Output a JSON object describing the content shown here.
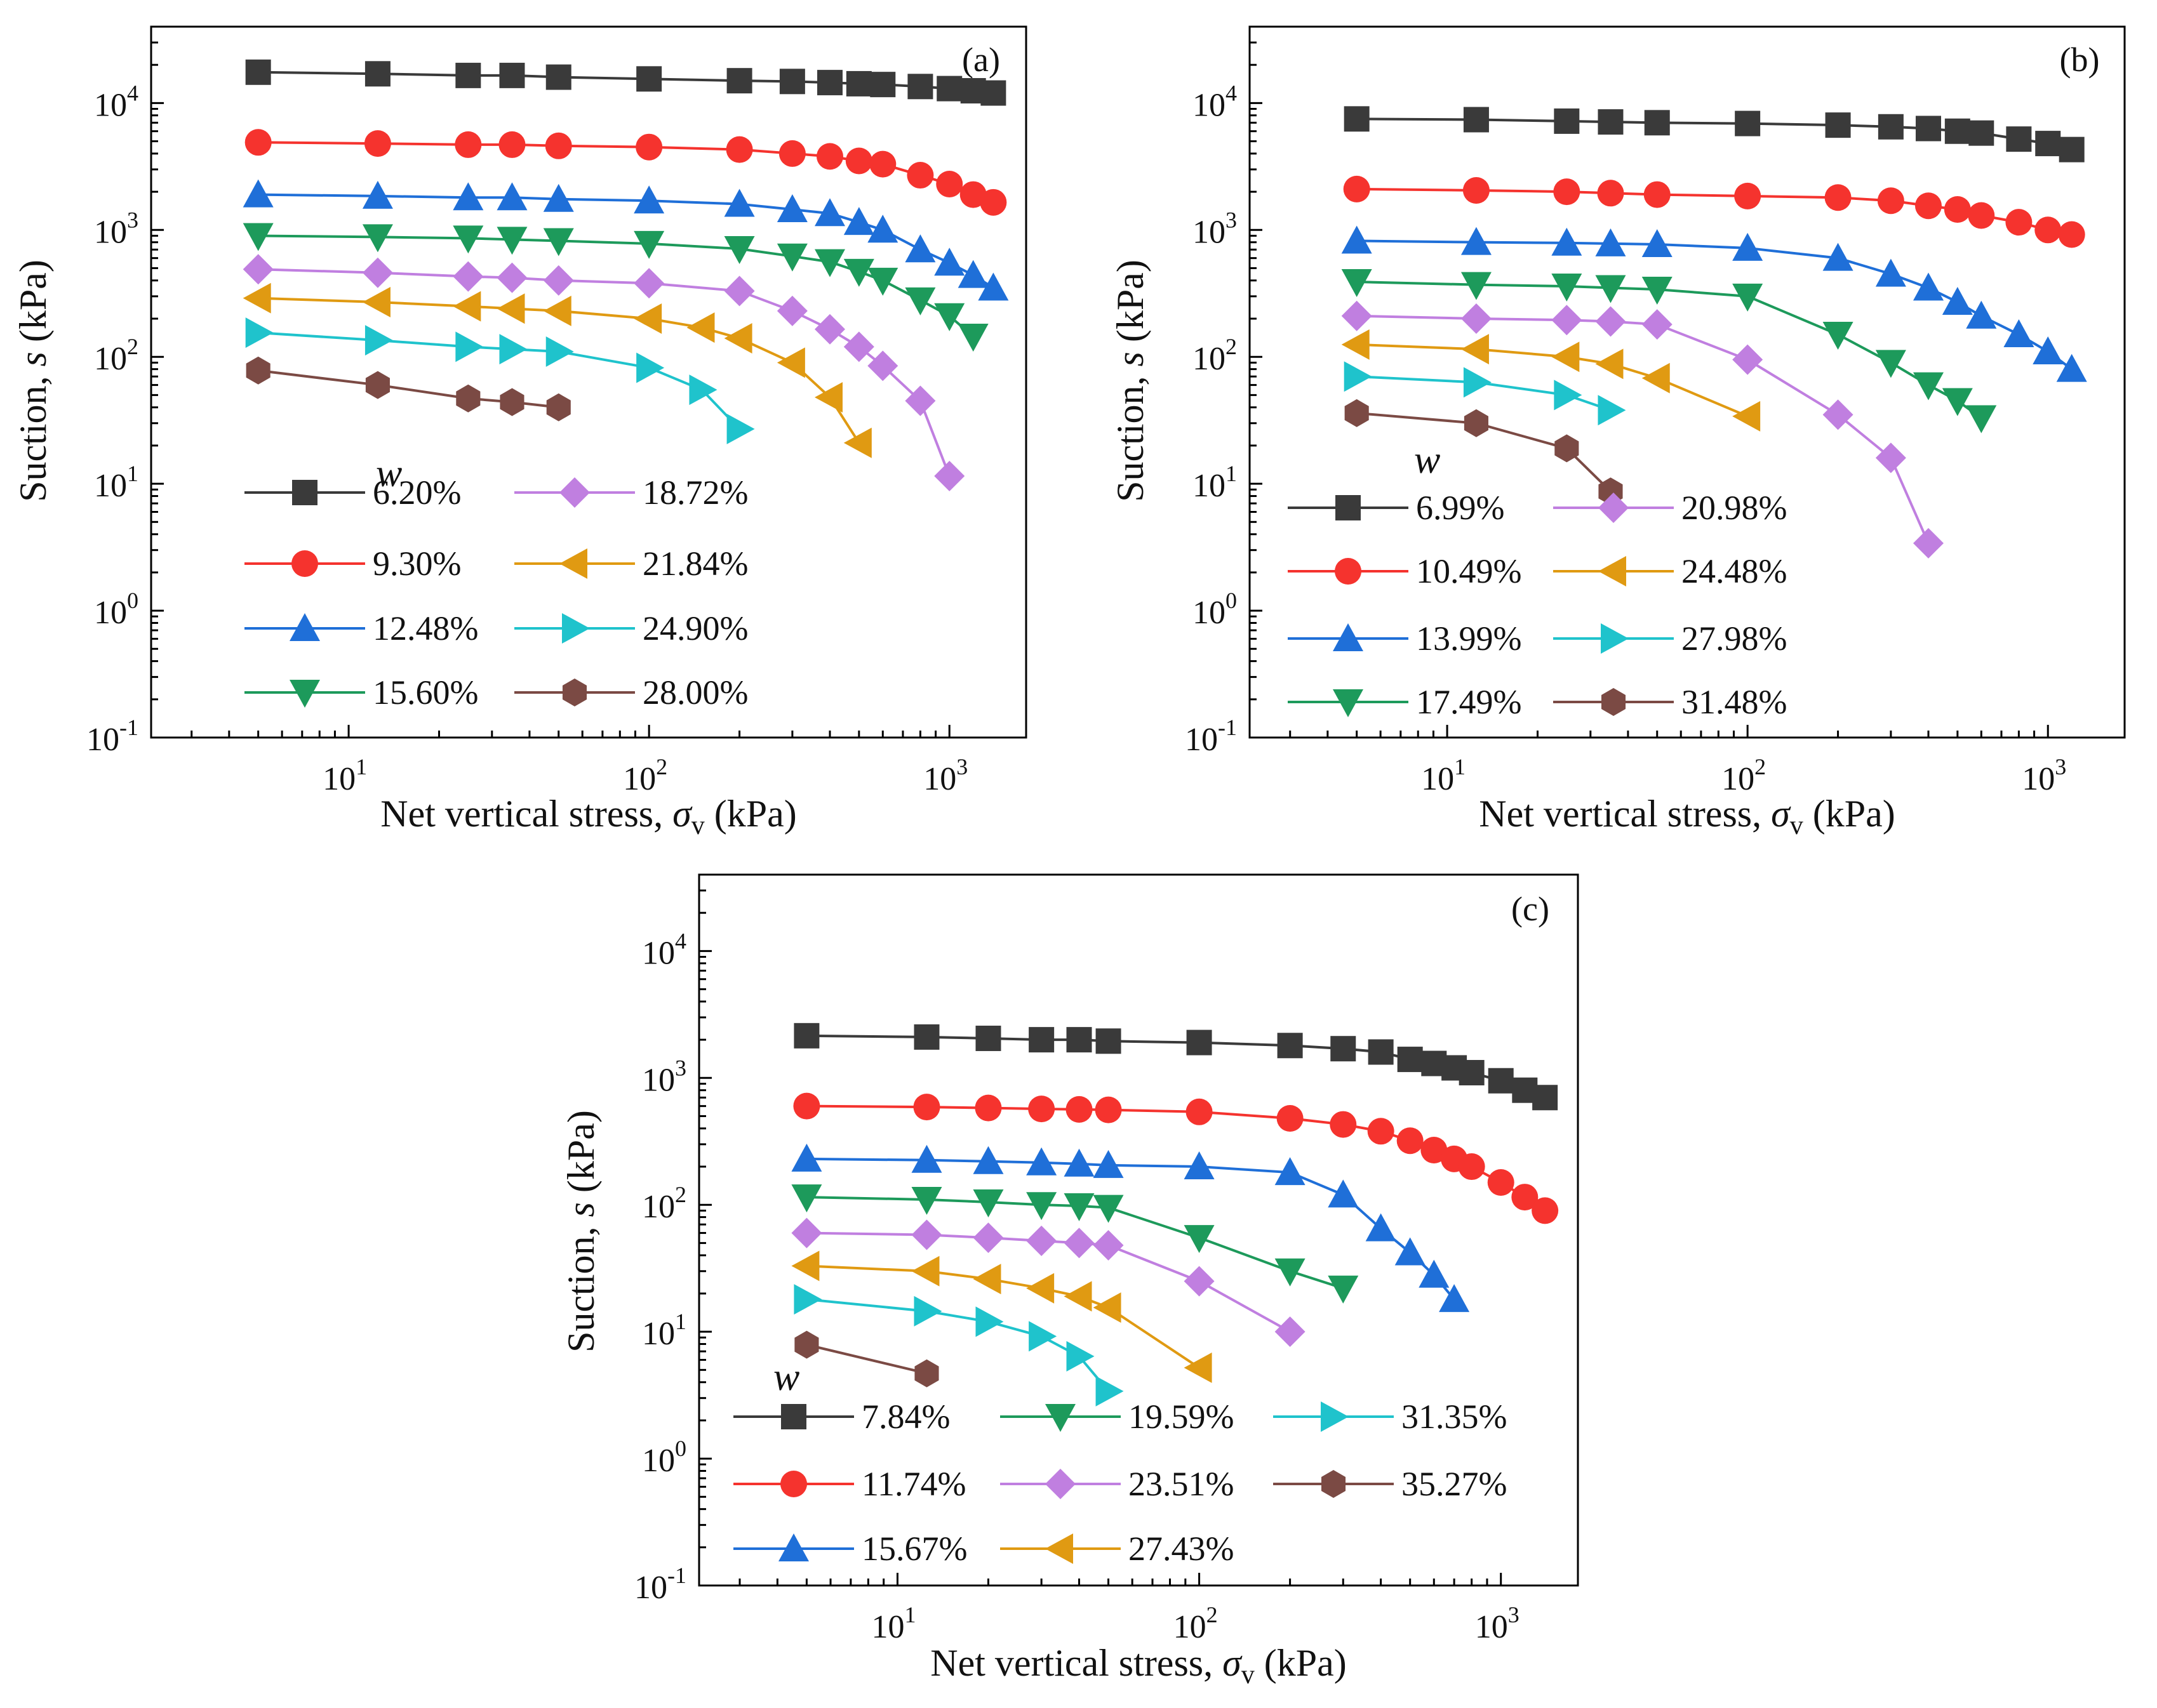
{
  "figure": {
    "x_axis_title": "Net vertical stress,",
    "x_axis_symbol": "σ",
    "x_axis_subscript": "v",
    "x_axis_unit": "(kPa)",
    "y_axis_title": "Suction,",
    "y_axis_symbol": "s",
    "y_axis_unit": "(kPa)",
    "legend_title": "w",
    "y_tick_labels": [
      "10",
      "10",
      "10",
      "10",
      "10",
      "10"
    ],
    "y_tick_exponents": [
      "-1",
      "0",
      "1",
      "2",
      "3",
      "4"
    ],
    "x_tick_labels": [
      "10",
      "10",
      "10"
    ],
    "x_tick_exponents": [
      "1",
      "2",
      "3"
    ]
  },
  "chart_data": [
    {
      "type": "line",
      "panel": "(a)",
      "xscale": "log",
      "yscale": "log",
      "xlim": [
        2.2,
        1800
      ],
      "ylim": [
        0.1,
        40000
      ],
      "xlabel": "Net vertical stress, σv (kPa)",
      "ylabel": "Suction, s (kPa)",
      "legend_title": "w",
      "series": [
        {
          "name": "6.20%",
          "color": "#3a3a3a",
          "marker": "square",
          "x": [
            5,
            12.5,
            25,
            35,
            50,
            100,
            200,
            300,
            400,
            500,
            600,
            800,
            1000,
            1200,
            1400
          ],
          "y": [
            17500,
            17000,
            16500,
            16500,
            16000,
            15500,
            15000,
            14800,
            14500,
            14200,
            14000,
            13500,
            13000,
            12500,
            12000
          ]
        },
        {
          "name": "9.30%",
          "color": "#f5332e",
          "marker": "circle",
          "x": [
            5,
            12.5,
            25,
            35,
            50,
            100,
            200,
            300,
            400,
            500,
            600,
            800,
            1000,
            1200,
            1400
          ],
          "y": [
            4900,
            4800,
            4700,
            4700,
            4600,
            4500,
            4300,
            4000,
            3800,
            3500,
            3300,
            2700,
            2300,
            1900,
            1650
          ]
        },
        {
          "name": "12.48%",
          "color": "#1f6fd8",
          "marker": "triangle-up",
          "x": [
            5,
            12.5,
            25,
            35,
            50,
            100,
            200,
            300,
            400,
            500,
            600,
            800,
            1000,
            1200,
            1400
          ],
          "y": [
            1900,
            1850,
            1800,
            1800,
            1750,
            1700,
            1600,
            1450,
            1350,
            1150,
            1000,
            700,
            550,
            440,
            350
          ]
        },
        {
          "name": "15.60%",
          "color": "#1d9a5b",
          "marker": "triangle-down",
          "x": [
            5,
            12.5,
            25,
            35,
            50,
            100,
            200,
            300,
            400,
            500,
            600,
            800,
            1000,
            1200
          ],
          "y": [
            900,
            880,
            860,
            840,
            820,
            780,
            710,
            620,
            560,
            470,
            400,
            280,
            210,
            145
          ]
        },
        {
          "name": "18.72%",
          "color": "#c07fe0",
          "marker": "diamond",
          "x": [
            5,
            12.5,
            25,
            35,
            50,
            100,
            200,
            300,
            400,
            500,
            600,
            800,
            1000
          ],
          "y": [
            490,
            460,
            430,
            420,
            400,
            380,
            330,
            230,
            165,
            120,
            85,
            45,
            11.5
          ]
        },
        {
          "name": "21.84%",
          "color": "#e09a12",
          "marker": "triangle-left",
          "x": [
            5,
            12.5,
            25,
            35,
            50,
            100,
            150,
            200,
            300,
            400,
            500
          ],
          "y": [
            290,
            270,
            250,
            240,
            230,
            200,
            170,
            140,
            90,
            48,
            21
          ]
        },
        {
          "name": "24.90%",
          "color": "#1fc3cc",
          "marker": "triangle-right",
          "x": [
            5,
            12.5,
            25,
            35,
            50,
            100,
            150,
            200
          ],
          "y": [
            155,
            135,
            120,
            115,
            110,
            82,
            55,
            27
          ]
        },
        {
          "name": "28.00%",
          "color": "#7b4a44",
          "marker": "hexagon",
          "x": [
            5,
            12.5,
            25,
            35,
            50
          ],
          "y": [
            78,
            60,
            47,
            44,
            40
          ]
        }
      ]
    },
    {
      "type": "line",
      "panel": "(b)",
      "xscale": "log",
      "yscale": "log",
      "xlim": [
        2.2,
        1800
      ],
      "ylim": [
        0.1,
        40000
      ],
      "xlabel": "Net vertical stress, σv (kPa)",
      "ylabel": "Suction, s (kPa)",
      "legend_title": "w",
      "series": [
        {
          "name": "6.99%",
          "color": "#3a3a3a",
          "marker": "square",
          "x": [
            5,
            12.5,
            25,
            35,
            50,
            100,
            200,
            300,
            400,
            500,
            600,
            800,
            1000,
            1200
          ],
          "y": [
            7500,
            7400,
            7200,
            7100,
            7000,
            6900,
            6700,
            6500,
            6300,
            6000,
            5800,
            5200,
            4800,
            4300
          ]
        },
        {
          "name": "10.49%",
          "color": "#f5332e",
          "marker": "circle",
          "x": [
            5,
            12.5,
            25,
            35,
            50,
            100,
            200,
            300,
            400,
            500,
            600,
            800,
            1000,
            1200
          ],
          "y": [
            2100,
            2050,
            2000,
            1950,
            1900,
            1850,
            1800,
            1700,
            1550,
            1450,
            1300,
            1150,
            1000,
            920
          ]
        },
        {
          "name": "13.99%",
          "color": "#1f6fd8",
          "marker": "triangle-up",
          "x": [
            5,
            12.5,
            25,
            35,
            50,
            100,
            200,
            300,
            400,
            500,
            600,
            800,
            1000,
            1200
          ],
          "y": [
            820,
            800,
            790,
            780,
            770,
            720,
            600,
            450,
            350,
            270,
            210,
            150,
            110,
            80
          ]
        },
        {
          "name": "17.49%",
          "color": "#1d9a5b",
          "marker": "triangle-down",
          "x": [
            5,
            12.5,
            25,
            35,
            50,
            100,
            200,
            300,
            400,
            500,
            600
          ],
          "y": [
            390,
            370,
            360,
            350,
            340,
            300,
            150,
            90,
            60,
            45,
            33
          ]
        },
        {
          "name": "20.98%",
          "color": "#c07fe0",
          "marker": "diamond",
          "x": [
            5,
            12.5,
            25,
            35,
            50,
            100,
            200,
            300,
            400
          ],
          "y": [
            210,
            200,
            195,
            190,
            180,
            95,
            35,
            16,
            3.4
          ]
        },
        {
          "name": "24.48%",
          "color": "#e09a12",
          "marker": "triangle-left",
          "x": [
            5,
            12.5,
            25,
            35,
            50,
            100
          ],
          "y": [
            125,
            115,
            100,
            88,
            68,
            34
          ]
        },
        {
          "name": "27.98%",
          "color": "#1fc3cc",
          "marker": "triangle-right",
          "x": [
            5,
            12.5,
            25,
            35
          ],
          "y": [
            70,
            63,
            50,
            38
          ]
        },
        {
          "name": "31.48%",
          "color": "#7b4a44",
          "marker": "hexagon",
          "x": [
            5,
            12.5,
            25,
            35
          ],
          "y": [
            36,
            30,
            19,
            8.7
          ]
        }
      ]
    },
    {
      "type": "line",
      "panel": "(c)",
      "xscale": "log",
      "yscale": "log",
      "xlim": [
        2.2,
        1800
      ],
      "ylim": [
        0.1,
        40000
      ],
      "xlabel": "Net vertical stress, σv (kPa)",
      "ylabel": "Suction, s (kPa)",
      "legend_title": "w",
      "series": [
        {
          "name": "7.84%",
          "color": "#3a3a3a",
          "marker": "square",
          "x": [
            5,
            12.5,
            20,
            30,
            40,
            50,
            100,
            200,
            300,
            400,
            500,
            600,
            700,
            800,
            1000,
            1200,
            1400
          ],
          "y": [
            2150,
            2100,
            2050,
            2000,
            2000,
            1950,
            1900,
            1800,
            1700,
            1600,
            1400,
            1300,
            1200,
            1100,
            950,
            800,
            700
          ]
        },
        {
          "name": "11.74%",
          "color": "#f5332e",
          "marker": "circle",
          "x": [
            5,
            12.5,
            20,
            30,
            40,
            50,
            100,
            200,
            300,
            400,
            500,
            600,
            700,
            800,
            1000,
            1200,
            1400
          ],
          "y": [
            600,
            590,
            580,
            570,
            565,
            560,
            540,
            480,
            430,
            380,
            320,
            270,
            230,
            200,
            150,
            115,
            90
          ]
        },
        {
          "name": "15.67%",
          "color": "#1f6fd8",
          "marker": "triangle-up",
          "x": [
            5,
            12.5,
            20,
            30,
            40,
            50,
            100,
            200,
            300,
            400,
            500,
            600,
            700
          ],
          "y": [
            230,
            225,
            220,
            215,
            210,
            205,
            200,
            180,
            120,
            65,
            42,
            28,
            18
          ]
        },
        {
          "name": "19.59%",
          "color": "#1d9a5b",
          "marker": "triangle-down",
          "x": [
            5,
            12.5,
            20,
            30,
            40,
            50,
            100,
            200,
            300
          ],
          "y": [
            115,
            110,
            105,
            100,
            98,
            95,
            55,
            30,
            22
          ]
        },
        {
          "name": "23.51%",
          "color": "#c07fe0",
          "marker": "diamond",
          "x": [
            5,
            12.5,
            20,
            30,
            40,
            50,
            100,
            200
          ],
          "y": [
            60,
            58,
            55,
            52,
            50,
            48,
            25,
            10
          ]
        },
        {
          "name": "27.43%",
          "color": "#e09a12",
          "marker": "triangle-left",
          "x": [
            5,
            12.5,
            20,
            30,
            40,
            50,
            100
          ],
          "y": [
            33,
            30,
            26,
            22,
            19,
            15.5,
            5.2
          ]
        },
        {
          "name": "31.35%",
          "color": "#1fc3cc",
          "marker": "triangle-right",
          "x": [
            5,
            12.5,
            20,
            30,
            40,
            50
          ],
          "y": [
            18,
            14.5,
            12,
            9.2,
            6.4,
            3.4
          ]
        },
        {
          "name": "35.27%",
          "color": "#7b4a44",
          "marker": "hexagon",
          "x": [
            5,
            12.5
          ],
          "y": [
            7.9,
            4.7
          ]
        }
      ]
    }
  ]
}
